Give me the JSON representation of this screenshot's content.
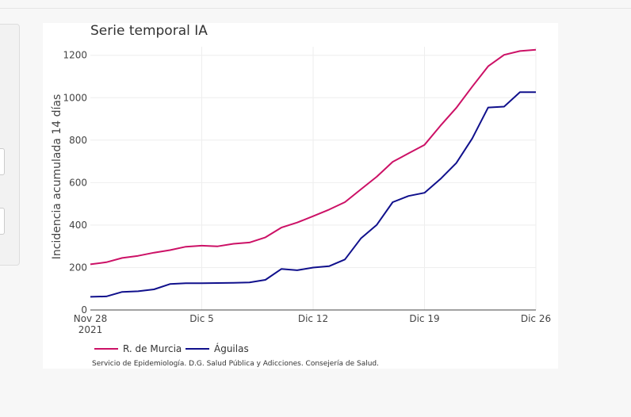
{
  "chart_data": {
    "type": "line",
    "title": "Serie temporal IA",
    "xlabel": "",
    "ylabel": "Incidencia acumulada 14 días",
    "ylim": [
      0,
      1240
    ],
    "yticks": [
      0,
      200,
      400,
      600,
      800,
      1000,
      1200
    ],
    "x_tick_labels": [
      "Nov 28",
      "Dic 5",
      "Dic 12",
      "Dic 19",
      "Dic 26"
    ],
    "x_tick_sublabel": "2021",
    "legend_position": "bottom-left",
    "grid": true,
    "source_note": "Servicio de Epidemiología. D.G. Salud Pública y Adicciones. Consejería de Salud.",
    "x": [
      "Nov 28",
      "Nov 29",
      "Nov 30",
      "Dic 1",
      "Dic 2",
      "Dic 3",
      "Dic 4",
      "Dic 5",
      "Dic 6",
      "Dic 7",
      "Dic 8",
      "Dic 9",
      "Dic 10",
      "Dic 11",
      "Dic 12",
      "Dic 13",
      "Dic 14",
      "Dic 15",
      "Dic 16",
      "Dic 17",
      "Dic 18",
      "Dic 19",
      "Dic 20",
      "Dic 21",
      "Dic 22",
      "Dic 23",
      "Dic 24",
      "Dic 25",
      "Dic 26"
    ],
    "series": [
      {
        "name": "R. de Murcia",
        "color": "#cc1166",
        "values": [
          215,
          225,
          245,
          255,
          270,
          282,
          298,
          303,
          300,
          312,
          318,
          342,
          388,
          412,
          442,
          473,
          508,
          568,
          628,
          698,
          738,
          778,
          868,
          952,
          1052,
          1148,
          1202,
          1220,
          1226
        ]
      },
      {
        "name": "Águilas",
        "color": "#10108c",
        "values": [
          62,
          64,
          85,
          88,
          97,
          122,
          126,
          126,
          127,
          128,
          130,
          142,
          193,
          187,
          200,
          206,
          238,
          337,
          401,
          508,
          537,
          552,
          617,
          692,
          808,
          954,
          958,
          1026,
          1026
        ]
      }
    ]
  }
}
